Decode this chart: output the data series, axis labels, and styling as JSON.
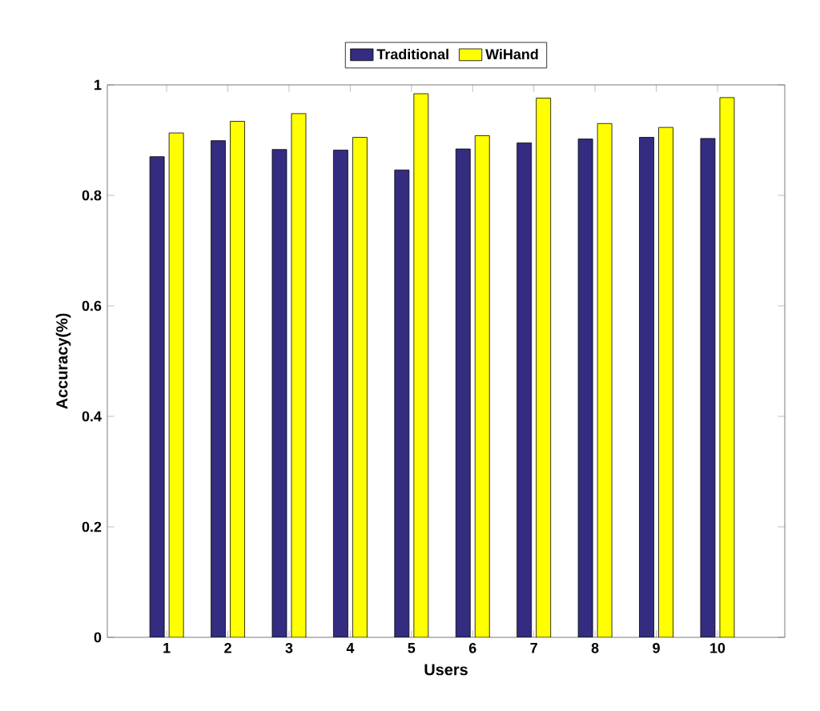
{
  "chart_data": {
    "type": "bar",
    "xlabel": "Users",
    "ylabel": "Accuracy(%)",
    "categories": [
      "1",
      "2",
      "3",
      "4",
      "5",
      "6",
      "7",
      "8",
      "9",
      "10"
    ],
    "series": [
      {
        "name": "Traditional",
        "color": "#332c80",
        "values": [
          0.87,
          0.899,
          0.883,
          0.882,
          0.846,
          0.884,
          0.895,
          0.902,
          0.905,
          0.903
        ]
      },
      {
        "name": "WiHand",
        "color": "#ffff00",
        "values": [
          0.913,
          0.934,
          0.948,
          0.905,
          0.984,
          0.908,
          0.976,
          0.93,
          0.923,
          0.977
        ]
      }
    ],
    "ylim": [
      0,
      1
    ],
    "yticks": [
      0,
      0.2,
      0.4,
      0.6,
      0.8,
      1
    ],
    "grid": false,
    "legend": "top"
  }
}
